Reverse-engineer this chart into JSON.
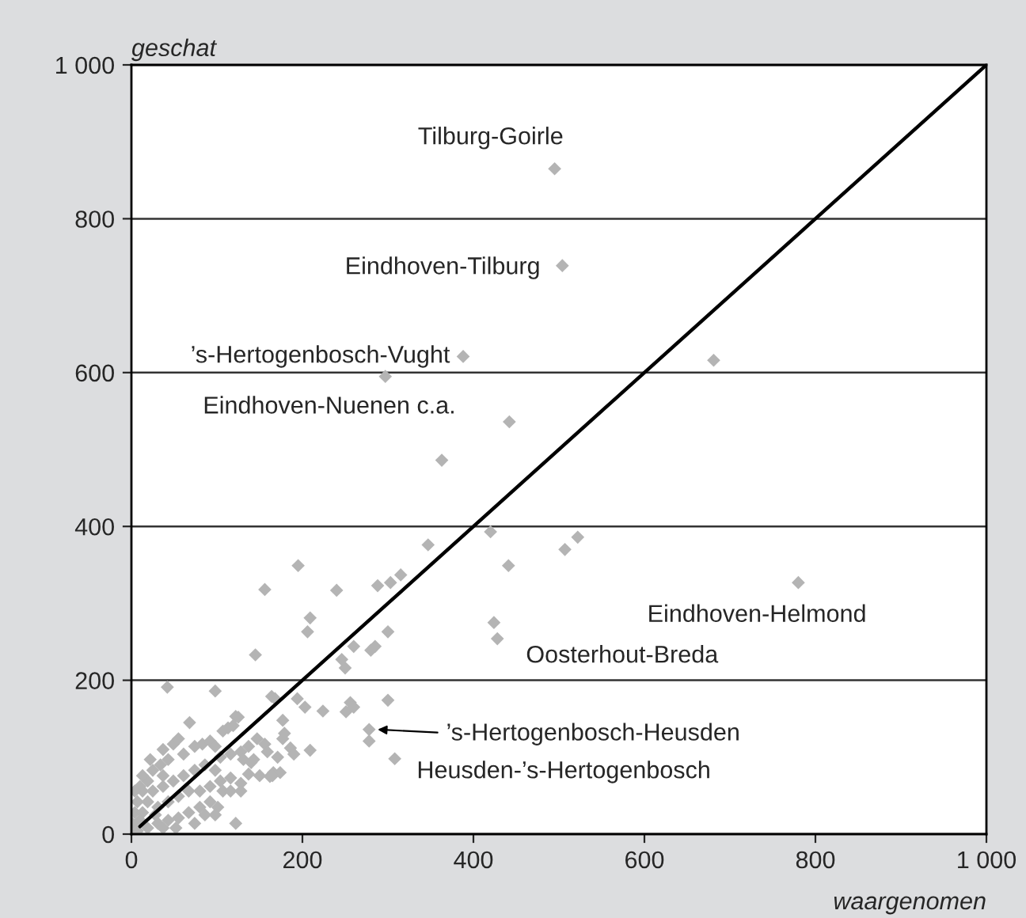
{
  "chart_data": {
    "type": "scatter",
    "xlabel": "waargenomen",
    "ylabel": "geschat",
    "xlim": [
      0,
      1000
    ],
    "ylim": [
      0,
      1000
    ],
    "xticks": [
      0,
      200,
      400,
      600,
      800,
      {
        "value": 1000,
        "label": "1 000"
      }
    ],
    "yticks": [
      0,
      200,
      400,
      600,
      800,
      {
        "value": 1000,
        "label": "1 000"
      }
    ],
    "grid": "y",
    "series": [
      {
        "marker": "diamond",
        "color": "#b4b4b4",
        "x": [
          495,
          504,
          388,
          297,
          442,
          363,
          681,
          420,
          522,
          441,
          507,
          780,
          424,
          428,
          347,
          195,
          156,
          240,
          288,
          303,
          315,
          209,
          206,
          145,
          260,
          246,
          250,
          285,
          280,
          300,
          42,
          98,
          164,
          168,
          194,
          203,
          224,
          256,
          260,
          251,
          300,
          278,
          278,
          68,
          177,
          179,
          209,
          308,
          122,
          137,
          122,
          186,
          190,
          177,
          166,
          162,
          49,
          55,
          43,
          34,
          25,
          19,
          13,
          7,
          4,
          1,
          10,
          37,
          61,
          74,
          83,
          92,
          98,
          107,
          113,
          119,
          125,
          104,
          116,
          128,
          137,
          147,
          156,
          131,
          140,
          98,
          86,
          74,
          61,
          49,
          37,
          25,
          19,
          13,
          31,
          43,
          55,
          67,
          80,
          92,
          104,
          116,
          128,
          107,
          92,
          80,
          67,
          55,
          43,
          31,
          19,
          7,
          37,
          52,
          74,
          86,
          101,
          143,
          159,
          171,
          174,
          165,
          150,
          116,
          128,
          98,
          37,
          22,
          13,
          4,
          10,
          28
        ],
        "values": [
          865,
          739,
          621,
          595,
          536,
          486,
          616,
          393,
          386,
          349,
          370,
          327,
          275,
          254,
          376,
          349,
          318,
          317,
          323,
          327,
          337,
          281,
          263,
          233,
          244,
          227,
          216,
          244,
          239,
          263,
          191,
          186,
          179,
          176,
          176,
          165,
          160,
          171,
          165,
          159,
          174,
          136,
          121,
          145,
          148,
          131,
          109,
          98,
          153,
          78,
          14,
          112,
          104,
          124,
          80,
          75,
          117,
          124,
          97,
          90,
          83,
          69,
          56,
          42,
          28,
          14,
          62,
          110,
          104,
          114,
          117,
          121,
          114,
          134,
          138,
          141,
          152,
          100,
          104,
          107,
          114,
          124,
          117,
          97,
          93,
          83,
          90,
          83,
          76,
          69,
          62,
          56,
          42,
          28,
          35,
          42,
          49,
          56,
          56,
          62,
          69,
          73,
          66,
          56,
          42,
          35,
          28,
          21,
          18,
          14,
          8,
          4,
          8,
          8,
          14,
          25,
          35,
          97,
          107,
          100,
          80,
          76,
          76,
          56,
          56,
          25,
          76,
          97,
          76,
          56,
          18,
          25
        ]
      },
      {
        "type": "line",
        "color": "#000000",
        "line_style": "solid",
        "x": [
          10,
          1000
        ],
        "values": [
          10,
          1000
        ]
      }
    ],
    "annotations": [
      {
        "text": "Tilburg-Goirle",
        "x": 495,
        "y": 865
      },
      {
        "text": "Eindhoven-Tilburg",
        "x": 504,
        "y": 739
      },
      {
        "text": "’s-Hertogenbosch-Vught",
        "x": 388,
        "y": 621
      },
      {
        "text": "Eindhoven-Nuenen c.a.",
        "x": 297,
        "y": 595
      },
      {
        "text": "Eindhoven-Helmond",
        "x": 780,
        "y": 327
      },
      {
        "text": "Oosterhout-Breda",
        "x": 428,
        "y": 254
      },
      "’s-Hertogenbosch-Heusden",
      {
        "text": "Heusden-’s-Hertogenbosch",
        "x": 308,
        "y": 98
      }
    ]
  }
}
